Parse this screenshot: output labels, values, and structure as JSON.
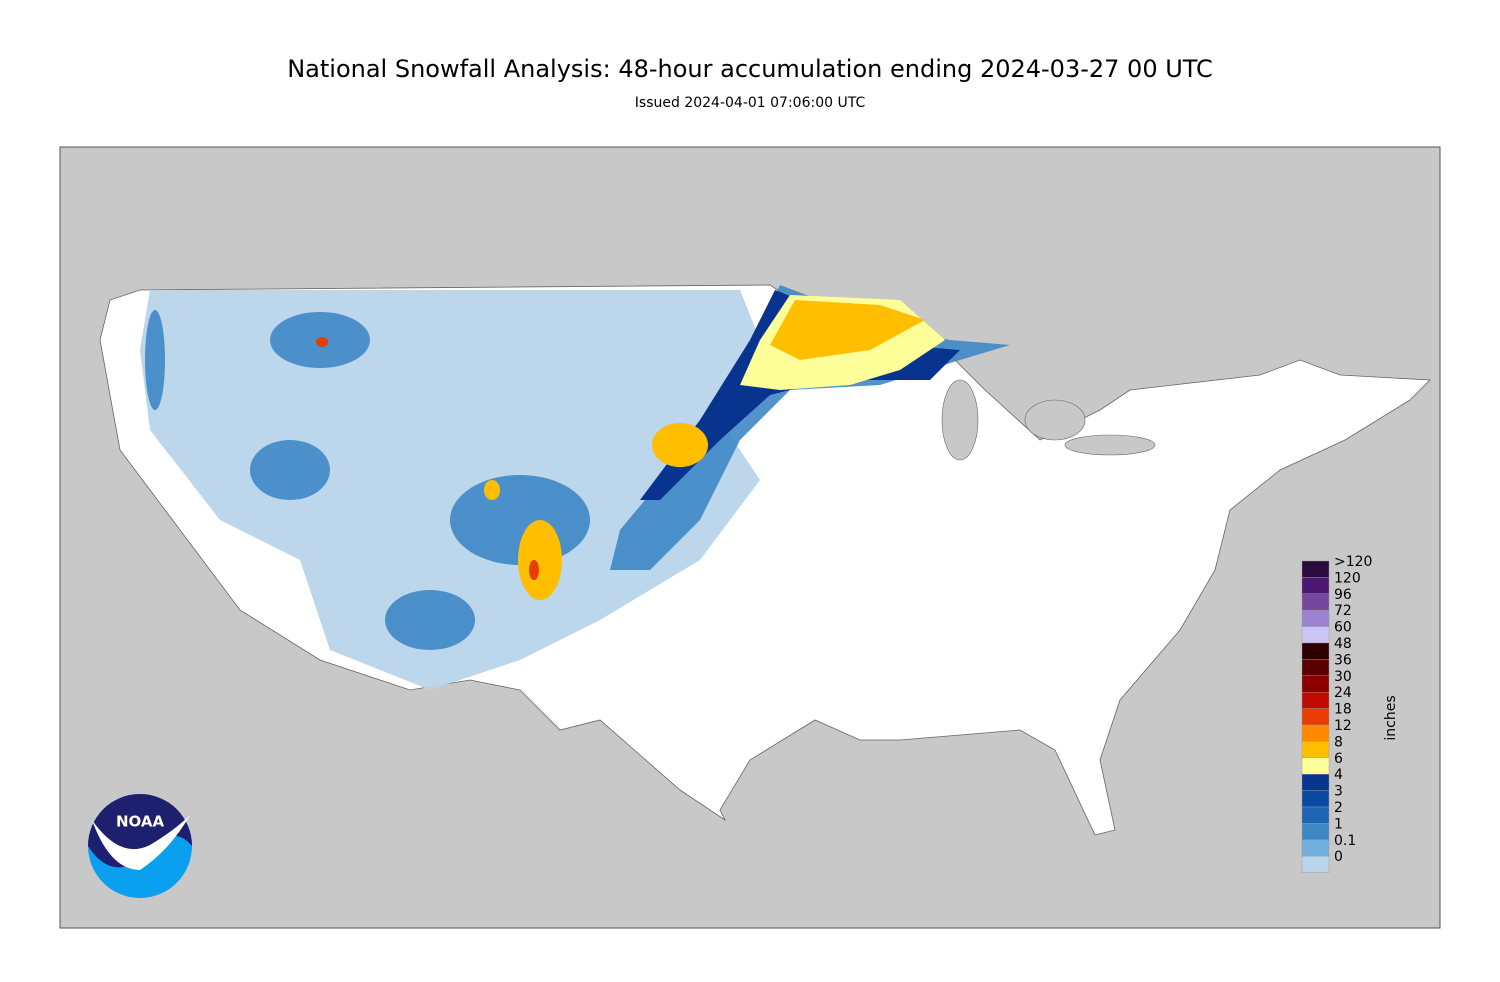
{
  "header": {
    "title": "National Snowfall Analysis: 48-hour accumulation ending 2024-03-27 00 UTC",
    "subtitle": "Issued 2024-04-01 07:06:00 UTC"
  },
  "logo": {
    "text": "NOAA"
  },
  "legend": {
    "unit": "inches",
    "items": [
      {
        "label": ">120",
        "color": "#2b0b3f"
      },
      {
        "label": "120",
        "color": "#4a1870"
      },
      {
        "label": "96",
        "color": "#77479f"
      },
      {
        "label": "72",
        "color": "#9b82d0"
      },
      {
        "label": "60",
        "color": "#cac6f5"
      },
      {
        "label": "48",
        "color": "#2e0000"
      },
      {
        "label": "36",
        "color": "#5a0000"
      },
      {
        "label": "30",
        "color": "#8c0000"
      },
      {
        "label": "24",
        "color": "#c30a00"
      },
      {
        "label": "18",
        "color": "#e83c00"
      },
      {
        "label": "12",
        "color": "#ff8a00"
      },
      {
        "label": "8",
        "color": "#ffbe00"
      },
      {
        "label": "6",
        "color": "#ffff99"
      },
      {
        "label": "4",
        "color": "#08338f"
      },
      {
        "label": "3",
        "color": "#0b4aa2"
      },
      {
        "label": "2",
        "color": "#1d64b3"
      },
      {
        "label": "1",
        "color": "#3e88c6"
      },
      {
        "label": "0.1",
        "color": "#6fb0dc"
      },
      {
        "label": "0",
        "color": "#b8d5ea"
      }
    ]
  }
}
